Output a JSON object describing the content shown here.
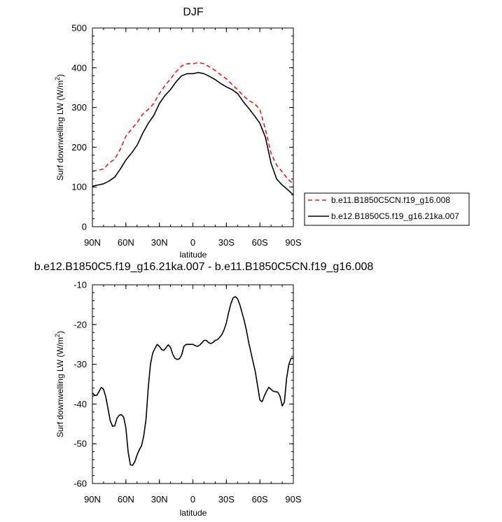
{
  "chart_data": [
    {
      "type": "line",
      "title": "DJF",
      "xlabel": "latitude",
      "ylabel": "Surf downwelling LW (W/m",
      "ylabel_sup": "2",
      "ylabel_close": ")",
      "xlim": [
        -90,
        90
      ],
      "ylim": [
        0,
        500
      ],
      "xticks": [
        -90,
        -60,
        -30,
        0,
        30,
        60,
        90
      ],
      "xtick_labels": [
        "90N",
        "60N",
        "30N",
        "0",
        "30S",
        "60S",
        "90S"
      ],
      "yticks": [
        0,
        100,
        200,
        300,
        400,
        500
      ],
      "ytick_labels": [
        "0",
        "100",
        "200",
        "300",
        "400",
        "500"
      ],
      "grid": false,
      "legend": "right",
      "series": [
        {
          "name": "b.e11.B1850C5CN.f19_g16.008",
          "color": "#e8191a",
          "dash": "dashed",
          "x": [
            -90,
            -85,
            -80,
            -75,
            -70,
            -65,
            -60,
            -55,
            -50,
            -45,
            -40,
            -35,
            -30,
            -25,
            -20,
            -15,
            -10,
            -5,
            0,
            5,
            10,
            15,
            20,
            25,
            30,
            35,
            40,
            45,
            50,
            55,
            60,
            65,
            70,
            75,
            80,
            85,
            90
          ],
          "y": [
            140,
            142,
            145,
            160,
            170,
            195,
            228,
            245,
            262,
            283,
            295,
            310,
            335,
            355,
            372,
            390,
            405,
            410,
            410,
            413,
            410,
            402,
            393,
            382,
            372,
            358,
            345,
            330,
            318,
            310,
            295,
            245,
            185,
            155,
            138,
            120,
            108
          ]
        },
        {
          "name": "b.e12.B1850C5.f19_g16.21ka.007",
          "color": "#000000",
          "dash": "solid",
          "x": [
            -90,
            -85,
            -80,
            -75,
            -70,
            -65,
            -60,
            -55,
            -50,
            -45,
            -40,
            -35,
            -30,
            -25,
            -20,
            -15,
            -10,
            -5,
            0,
            5,
            10,
            15,
            20,
            25,
            30,
            35,
            40,
            45,
            50,
            55,
            60,
            65,
            70,
            75,
            80,
            85,
            90
          ],
          "y": [
            102,
            105,
            108,
            115,
            125,
            145,
            168,
            185,
            205,
            235,
            260,
            280,
            310,
            330,
            345,
            365,
            380,
            385,
            385,
            388,
            385,
            378,
            370,
            360,
            352,
            345,
            335,
            315,
            298,
            280,
            260,
            225,
            160,
            120,
            105,
            93,
            80
          ]
        }
      ]
    },
    {
      "type": "line",
      "title": "b.e12.B1850C5.f19_g16.21ka.007 - b.e11.B1850C5CN.f19_g16.008",
      "xlabel": "latitude",
      "ylabel": "Surf downwelling LW (W/m",
      "ylabel_sup": "2",
      "ylabel_close": ")",
      "xlim": [
        -90,
        90
      ],
      "ylim": [
        -60,
        -10
      ],
      "xticks": [
        -90,
        -60,
        -30,
        0,
        30,
        60,
        90
      ],
      "xtick_labels": [
        "90N",
        "60N",
        "30N",
        "0",
        "30S",
        "60S",
        "90S"
      ],
      "yticks": [
        -60,
        -50,
        -40,
        -30,
        -20,
        -10
      ],
      "ytick_labels": [
        "-60",
        "-50",
        "-40",
        "-30",
        "-20",
        "-10"
      ],
      "grid": false,
      "series": [
        {
          "color": "#000000",
          "dash": "solid",
          "x": [
            -90,
            -88,
            -86,
            -84,
            -82,
            -80,
            -78,
            -76,
            -74,
            -72,
            -70,
            -68,
            -66,
            -64,
            -62,
            -60,
            -58,
            -56,
            -54,
            -52,
            -50,
            -48,
            -46,
            -44,
            -42,
            -40,
            -38,
            -36,
            -34,
            -32,
            -30,
            -28,
            -26,
            -24,
            -22,
            -20,
            -18,
            -16,
            -14,
            -12,
            -10,
            -8,
            -6,
            -4,
            -2,
            0,
            2,
            4,
            6,
            8,
            10,
            12,
            14,
            16,
            18,
            20,
            22,
            24,
            26,
            28,
            30,
            32,
            34,
            36,
            38,
            40,
            42,
            44,
            46,
            48,
            50,
            52,
            54,
            56,
            58,
            60,
            62,
            64,
            66,
            68,
            70,
            72,
            74,
            76,
            78,
            80,
            82,
            84,
            86,
            88,
            90
          ],
          "y": [
            -37.2,
            -37.8,
            -37.8,
            -36.8,
            -35.8,
            -36.3,
            -38.2,
            -41.2,
            -44.2,
            -45.6,
            -45.5,
            -43.6,
            -42.8,
            -42.7,
            -43.3,
            -46.0,
            -52.0,
            -55.3,
            -55.4,
            -54.5,
            -52.8,
            -51.5,
            -50.5,
            -48.0,
            -44.0,
            -36.0,
            -30.0,
            -27.2,
            -26.0,
            -25.0,
            -25.5,
            -26.3,
            -26.5,
            -25.8,
            -25.1,
            -25.8,
            -27.5,
            -28.5,
            -28.8,
            -28.6,
            -27.6,
            -25.5,
            -25.0,
            -25.0,
            -25.0,
            -25.0,
            -25.3,
            -25.5,
            -25.2,
            -24.6,
            -24.0,
            -24.0,
            -24.5,
            -24.8,
            -24.5,
            -24.0,
            -23.8,
            -23.2,
            -22.5,
            -21.3,
            -19.6,
            -17.0,
            -14.8,
            -13.3,
            -13.0,
            -13.5,
            -15.0,
            -17.0,
            -19.0,
            -21.5,
            -24.5,
            -27.0,
            -29.5,
            -32.0,
            -35.5,
            -39.0,
            -39.4,
            -38.0,
            -36.8,
            -35.8,
            -36.3,
            -36.8,
            -36.9,
            -37.0,
            -38.0,
            -40.5,
            -39.5,
            -33.5,
            -30.0,
            -28.5,
            -28.5
          ]
        }
      ]
    }
  ]
}
